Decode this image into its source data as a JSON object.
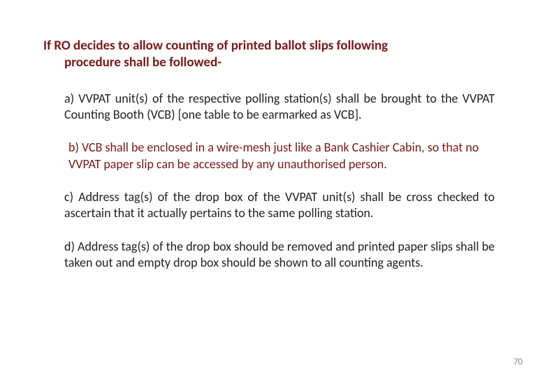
{
  "colors": {
    "maroon": "#7a1818",
    "black": "#222222",
    "background": "#ffffff",
    "page_num": "#888888"
  },
  "heading": {
    "line1": "If RO decides to allow counting of printed ballot  slips following",
    "line2": "procedure shall be followed-"
  },
  "paragraphs": {
    "a": "a) VVPAT unit(s) of the respective polling station(s) shall be brought to the VVPAT Counting Booth (VCB) [one table to be earmarked as VCB].",
    "b": "b) VCB shall be enclosed in a wire-mesh just like a Bank Cashier Cabin, so that no VVPAT paper slip can be accessed by any  unauthorised person.",
    "c": "c)  Address tag(s) of the drop box of the VVPAT unit(s) shall be cross checked to ascertain that it actually pertains to the same polling station.",
    "d": "d)  Address tag(s) of the drop box should be removed and printed paper slips shall be taken out and empty drop box should be shown to all counting agents."
  },
  "page_number": "70",
  "typography": {
    "heading_fontsize": 19,
    "body_fontsize": 18,
    "page_num_fontsize": 13,
    "font_family": "Calibri"
  }
}
